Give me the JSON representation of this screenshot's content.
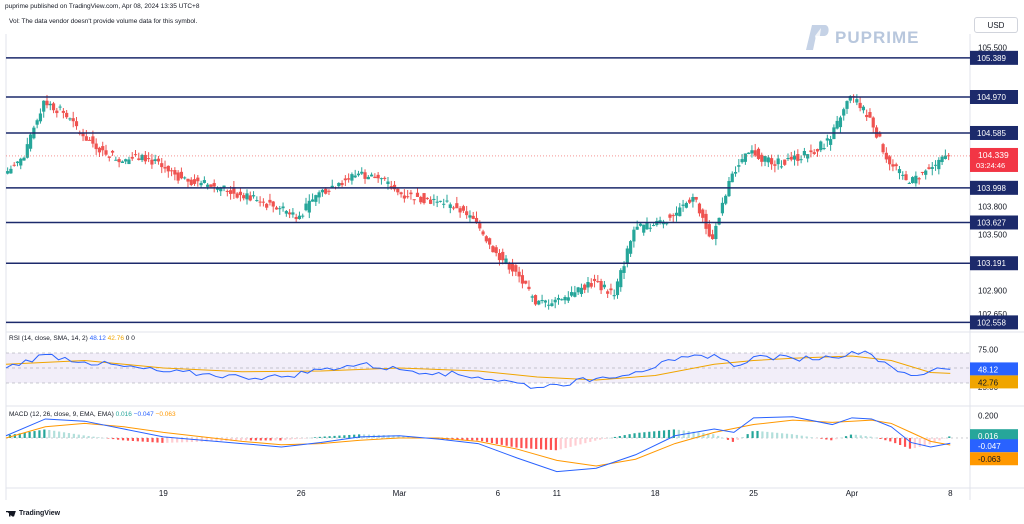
{
  "header": {
    "published": "puprime published on TradingView.com, Apr 08, 2024 13:35 UTC+8",
    "vol_note": "Vol: The data vendor doesn't provide volume data for this symbol."
  },
  "currency_button": "USD",
  "brand": {
    "name": "PUPRIME",
    "color": "#b8c7dd"
  },
  "footer": {
    "brand": "TradingView"
  },
  "colors": {
    "up": "#26a69a",
    "down": "#ef5350",
    "level_line": "#1c2a6b",
    "rsi": "#2962ff",
    "rsi_ma": "#f0a500",
    "macd": "#2962ff",
    "signal": "#ff9800"
  },
  "indicators": {
    "rsi": {
      "label": "RSI (14, close, SMA, 14, 2)",
      "v1": "48.12",
      "v2": "42.76",
      "v3": "0",
      "v4": "0"
    },
    "macd": {
      "label": "MACD (12, 26, close, 9, EMA, EMA)",
      "v1": "0.016",
      "v2": "−0.047",
      "v3": "−0.063"
    }
  },
  "chart_data": [
    {
      "type": "candlestick",
      "x_tick_labels": [
        {
          "label": "19",
          "day": 8
        },
        {
          "label": "26",
          "day": 15
        },
        {
          "label": "Mar",
          "day": 20
        },
        {
          "label": "6",
          "day": 25
        },
        {
          "label": "11",
          "day": 28
        },
        {
          "label": "18",
          "day": 33
        },
        {
          "label": "25",
          "day": 38
        },
        {
          "label": "Apr",
          "day": 43
        },
        {
          "label": "8",
          "day": 48
        }
      ],
      "day_range": [
        0,
        48.9
      ],
      "y_ticks": [
        "105.500",
        "103.800",
        "103.500",
        "102.900",
        "102.650"
      ],
      "ylim": [
        102.53,
        105.58
      ],
      "levels": [
        "105.389",
        "104.970",
        "104.585",
        "103.998",
        "103.627",
        "103.191",
        "102.558"
      ],
      "last_price": "104.339",
      "countdown": "03:24:46",
      "close_series": [
        {
          "day": 0,
          "close": 104.15
        },
        {
          "day": 1,
          "close": 104.32
        },
        {
          "day": 2,
          "close": 104.93
        },
        {
          "day": 3,
          "close": 104.8
        },
        {
          "day": 4,
          "close": 104.55
        },
        {
          "day": 5,
          "close": 104.4
        },
        {
          "day": 6,
          "close": 104.28
        },
        {
          "day": 7,
          "close": 104.35
        },
        {
          "day": 8,
          "close": 104.22
        },
        {
          "day": 9,
          "close": 104.1
        },
        {
          "day": 10,
          "close": 104.05
        },
        {
          "day": 11,
          "close": 104.0
        },
        {
          "day": 12,
          "close": 103.92
        },
        {
          "day": 13,
          "close": 103.85
        },
        {
          "day": 14,
          "close": 103.78
        },
        {
          "day": 15,
          "close": 103.7
        },
        {
          "day": 16,
          "close": 103.95
        },
        {
          "day": 17,
          "close": 104.05
        },
        {
          "day": 18,
          "close": 104.15
        },
        {
          "day": 19,
          "close": 104.1
        },
        {
          "day": 20,
          "close": 103.95
        },
        {
          "day": 21,
          "close": 103.9
        },
        {
          "day": 22,
          "close": 103.85
        },
        {
          "day": 23,
          "close": 103.78
        },
        {
          "day": 24,
          "close": 103.62
        },
        {
          "day": 25,
          "close": 103.3
        },
        {
          "day": 26,
          "close": 103.1
        },
        {
          "day": 27,
          "close": 102.75
        },
        {
          "day": 28,
          "close": 102.8
        },
        {
          "day": 29,
          "close": 102.88
        },
        {
          "day": 30,
          "close": 103.0
        },
        {
          "day": 31,
          "close": 102.85
        },
        {
          "day": 32,
          "close": 103.55
        },
        {
          "day": 33,
          "close": 103.6
        },
        {
          "day": 34,
          "close": 103.7
        },
        {
          "day": 35,
          "close": 103.9
        },
        {
          "day": 36,
          "close": 103.45
        },
        {
          "day": 37,
          "close": 104.15
        },
        {
          "day": 38,
          "close": 104.4
        },
        {
          "day": 39,
          "close": 104.25
        },
        {
          "day": 40,
          "close": 104.3
        },
        {
          "day": 41,
          "close": 104.38
        },
        {
          "day": 42,
          "close": 104.52
        },
        {
          "day": 43,
          "close": 104.98
        },
        {
          "day": 44,
          "close": 104.75
        },
        {
          "day": 45,
          "close": 104.25
        },
        {
          "day": 46,
          "close": 104.05
        },
        {
          "day": 47,
          "close": 104.2
        },
        {
          "day": 48,
          "close": 104.339
        }
      ]
    },
    {
      "type": "line",
      "title": "RSI (14, close, SMA, 14, 2)",
      "y_ticks": [
        "75.00",
        "25.00"
      ],
      "ylim": [
        18,
        82
      ],
      "band": [
        30,
        70
      ],
      "series": [
        {
          "name": "RSI",
          "last": "48.12",
          "values": [
            [
              0,
              50
            ],
            [
              2,
              68
            ],
            [
              4,
              58
            ],
            [
              6,
              52
            ],
            [
              8,
              45
            ],
            [
              10,
              42
            ],
            [
              12,
              38
            ],
            [
              14,
              38
            ],
            [
              16,
              48
            ],
            [
              18,
              55
            ],
            [
              20,
              48
            ],
            [
              22,
              44
            ],
            [
              24,
              38
            ],
            [
              26,
              30
            ],
            [
              27,
              24
            ],
            [
              28,
              28
            ],
            [
              30,
              36
            ],
            [
              32,
              45
            ],
            [
              34,
              60
            ],
            [
              36,
              68
            ],
            [
              37,
              52
            ],
            [
              38,
              65
            ],
            [
              40,
              63
            ],
            [
              42,
              64
            ],
            [
              43,
              72
            ],
            [
              44,
              68
            ],
            [
              45,
              52
            ],
            [
              46,
              40
            ],
            [
              47,
              46
            ],
            [
              48,
              48.12
            ]
          ]
        },
        {
          "name": "RSI MA",
          "last": "42.76",
          "values": [
            [
              0,
              55
            ],
            [
              4,
              60
            ],
            [
              8,
              50
            ],
            [
              12,
              45
            ],
            [
              16,
              46
            ],
            [
              20,
              50
            ],
            [
              24,
              46
            ],
            [
              27,
              38
            ],
            [
              30,
              34
            ],
            [
              33,
              40
            ],
            [
              36,
              55
            ],
            [
              38,
              60
            ],
            [
              40,
              63
            ],
            [
              43,
              66
            ],
            [
              45,
              60
            ],
            [
              47,
              44
            ],
            [
              48,
              42.76
            ]
          ]
        }
      ]
    },
    {
      "type": "bar",
      "title": "MACD (12, 26, close, 9, EMA, EMA)",
      "y_ticks": [
        "0.200"
      ],
      "ylim": [
        -0.42,
        0.25
      ],
      "histogram_last": "0.016",
      "series": [
        {
          "name": "MACD",
          "last": "-0.047",
          "values": [
            [
              0,
              0.02
            ],
            [
              2,
              0.17
            ],
            [
              4,
              0.15
            ],
            [
              6,
              0.08
            ],
            [
              8,
              0.01
            ],
            [
              10,
              -0.02
            ],
            [
              12,
              -0.05
            ],
            [
              14,
              -0.08
            ],
            [
              16,
              -0.04
            ],
            [
              18,
              0.01
            ],
            [
              20,
              0.02
            ],
            [
              22,
              -0.01
            ],
            [
              24,
              -0.05
            ],
            [
              26,
              -0.18
            ],
            [
              28,
              -0.3
            ],
            [
              30,
              -0.27
            ],
            [
              32,
              -0.15
            ],
            [
              34,
              0.02
            ],
            [
              36,
              0.08
            ],
            [
              37,
              0.05
            ],
            [
              38,
              0.18
            ],
            [
              40,
              0.19
            ],
            [
              42,
              0.12
            ],
            [
              43,
              0.18
            ],
            [
              44,
              0.17
            ],
            [
              45,
              0.1
            ],
            [
              46,
              -0.04
            ],
            [
              47,
              -0.08
            ],
            [
              48,
              -0.047
            ]
          ]
        },
        {
          "name": "Signal",
          "last": "-0.063",
          "values": [
            [
              0,
              0.0
            ],
            [
              2,
              0.1
            ],
            [
              4,
              0.13
            ],
            [
              6,
              0.1
            ],
            [
              8,
              0.05
            ],
            [
              10,
              0.01
            ],
            [
              12,
              -0.03
            ],
            [
              14,
              -0.06
            ],
            [
              16,
              -0.05
            ],
            [
              18,
              -0.02
            ],
            [
              20,
              0.0
            ],
            [
              22,
              0.0
            ],
            [
              24,
              -0.03
            ],
            [
              26,
              -0.1
            ],
            [
              28,
              -0.2
            ],
            [
              30,
              -0.25
            ],
            [
              32,
              -0.19
            ],
            [
              34,
              -0.05
            ],
            [
              36,
              0.05
            ],
            [
              38,
              0.12
            ],
            [
              40,
              0.16
            ],
            [
              42,
              0.14
            ],
            [
              44,
              0.16
            ],
            [
              45,
              0.13
            ],
            [
              46,
              0.05
            ],
            [
              47,
              -0.03
            ],
            [
              48,
              -0.063
            ]
          ]
        }
      ]
    }
  ]
}
